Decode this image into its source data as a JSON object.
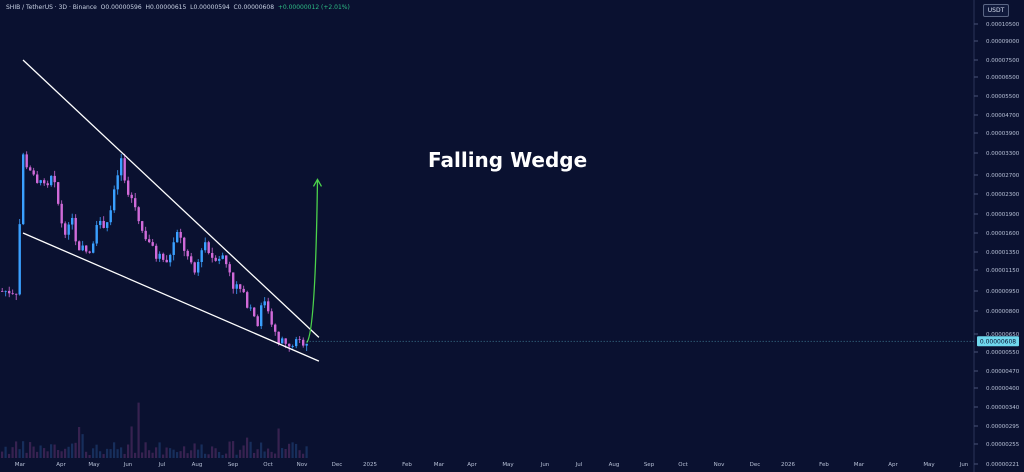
{
  "header": {
    "symbol": "SHIB / TetherUS · 3D · Binance",
    "o_label": "O",
    "o": "0.00000596",
    "h_label": "H",
    "h": "0.00000615",
    "l_label": "L",
    "l": "0.00000594",
    "c_label": "C",
    "c": "0.00000608",
    "change": "+0.00000012 (+2.01%)"
  },
  "currency_button": "USDT",
  "annotation": "Falling Wedge",
  "last_price": "0.00000608",
  "colors": {
    "background": "#0a1130",
    "candle_up": "#3aa0ff",
    "candle_down": "#d06ad8",
    "trendline": "#ffffff",
    "arrow": "#4cd34c",
    "price_label_bg": "#6fd8ee"
  },
  "chart_data": {
    "type": "candlestick",
    "scale": "log",
    "y_axis_ticks": [
      "0.00010500",
      "0.00009000",
      "0.00007500",
      "0.00006500",
      "0.00005500",
      "0.00004700",
      "0.00003900",
      "0.00003300",
      "0.00002700",
      "0.00002300",
      "0.00001900",
      "0.00001600",
      "0.00001350",
      "0.00001150",
      "0.00000950",
      "0.00000800",
      "0.00000650",
      "0.00000550",
      "0.00000470",
      "0.00000400",
      "0.00000340",
      "0.00000295",
      "0.00000255",
      "0.00000221"
    ],
    "x_axis_ticks": [
      "Mar",
      "Apr",
      "May",
      "Jun",
      "Jul",
      "Aug",
      "Sep",
      "Oct",
      "Nov",
      "Dec",
      "2025",
      "Feb",
      "Mar",
      "Apr",
      "May",
      "Jun",
      "Jul",
      "Aug",
      "Sep",
      "Oct",
      "Nov",
      "Dec",
      "2026",
      "Feb",
      "Mar",
      "Apr",
      "May",
      "Jun"
    ],
    "close_path": [
      {
        "x": "2024-02-20",
        "y": 9.5e-06
      },
      {
        "x": "2024-03-01",
        "y": 2.2e-05
      },
      {
        "x": "2024-03-05",
        "y": 3.3e-05
      },
      {
        "x": "2024-03-15",
        "y": 3e-05
      },
      {
        "x": "2024-04-01",
        "y": 2.8e-05
      },
      {
        "x": "2024-04-13",
        "y": 2.4e-05
      },
      {
        "x": "2024-04-25",
        "y": 2.7e-05
      },
      {
        "x": "2024-05-10",
        "y": 2.3e-05
      },
      {
        "x": "2024-05-28",
        "y": 2.7e-05
      },
      {
        "x": "2024-06-10",
        "y": 2.2e-05
      },
      {
        "x": "2024-06-25",
        "y": 1.7e-05
      },
      {
        "x": "2024-07-10",
        "y": 1.6e-05
      },
      {
        "x": "2024-07-22",
        "y": 1.9e-05
      },
      {
        "x": "2024-08-05",
        "y": 1.3e-05
      },
      {
        "x": "2024-08-22",
        "y": 1.4e-05
      },
      {
        "x": "2024-09-10",
        "y": 1.3e-05
      },
      {
        "x": "2024-09-28",
        "y": 1.8e-05
      },
      {
        "x": "2024-10-10",
        "y": 1.7e-05
      },
      {
        "x": "2024-10-28",
        "y": 1.8e-05
      },
      {
        "x": "2024-11-08",
        "y": 2e-05
      },
      {
        "x": "2024-11-20",
        "y": 2.5e-05
      },
      {
        "x": "2024-12-05",
        "y": 3.1e-05
      },
      {
        "x": "2024-12-20",
        "y": 2.3e-05
      },
      {
        "x": "2025-01-05",
        "y": 2.2e-05
      },
      {
        "x": "2025-01-20",
        "y": 1.9e-05
      },
      {
        "x": "2025-02-03",
        "y": 1.6e-05
      },
      {
        "x": "2025-02-20",
        "y": 1.5e-05
      },
      {
        "x": "2025-03-10",
        "y": 1.3e-05
      },
      {
        "x": "2025-03-28",
        "y": 1.3e-05
      },
      {
        "x": "2025-04-10",
        "y": 1.2e-05
      },
      {
        "x": "2025-04-25",
        "y": 1.4e-05
      },
      {
        "x": "2025-05-12",
        "y": 1.6e-05
      },
      {
        "x": "2025-05-28",
        "y": 1.4e-05
      },
      {
        "x": "2025-06-15",
        "y": 1.2e-05
      },
      {
        "x": "2025-06-30",
        "y": 1.1e-05
      },
      {
        "x": "2025-07-15",
        "y": 1.4e-05
      },
      {
        "x": "2025-07-25",
        "y": 1.5e-05
      },
      {
        "x": "2025-08-10",
        "y": 1.3e-05
      },
      {
        "x": "2025-08-28",
        "y": 1.3e-05
      },
      {
        "x": "2025-09-12",
        "y": 1.3e-05
      },
      {
        "x": "2025-09-25",
        "y": 1.2e-05
      },
      {
        "x": "2025-10-09",
        "y": 1.1e-05
      },
      {
        "x": "2025-10-12",
        "y": 1e-05
      },
      {
        "x": "2025-10-28",
        "y": 9.8e-06
      },
      {
        "x": "2025-11-15",
        "y": 8.8e-06
      },
      {
        "x": "2025-12-01",
        "y": 8.2e-06
      },
      {
        "x": "2025-12-20",
        "y": 7.2e-06
      },
      {
        "x": "2026-01-05",
        "y": 9e-06
      },
      {
        "x": "2026-01-20",
        "y": 8e-06
      },
      {
        "x": "2026-02-05",
        "y": 6.6e-06
      },
      {
        "x": "2026-02-15",
        "y": 5.8e-06
      },
      {
        "x": "2026-02-28",
        "y": 6.2e-06
      },
      {
        "x": "2026-03-15",
        "y": 5.6e-06
      },
      {
        "x": "2026-03-28",
        "y": 6e-06
      },
      {
        "x": "2026-04-15",
        "y": 6e-06
      },
      {
        "x": "2026-04-28",
        "y": 6.08e-06
      }
    ],
    "upper_trendline": [
      {
        "x": "2024-03-01",
        "y": 7.5e-05
      },
      {
        "x": "2026-06-01",
        "y": 6.3e-06
      }
    ],
    "lower_trendline": [
      {
        "x": "2024-03-01",
        "y": 1.6e-05
      },
      {
        "x": "2026-06-01",
        "y": 5.1e-06
      }
    ],
    "projection_arrow": [
      {
        "x": "2026-04-28",
        "y": 6e-06
      },
      {
        "x": "2026-05-28",
        "y": 2.6e-05
      }
    ]
  }
}
